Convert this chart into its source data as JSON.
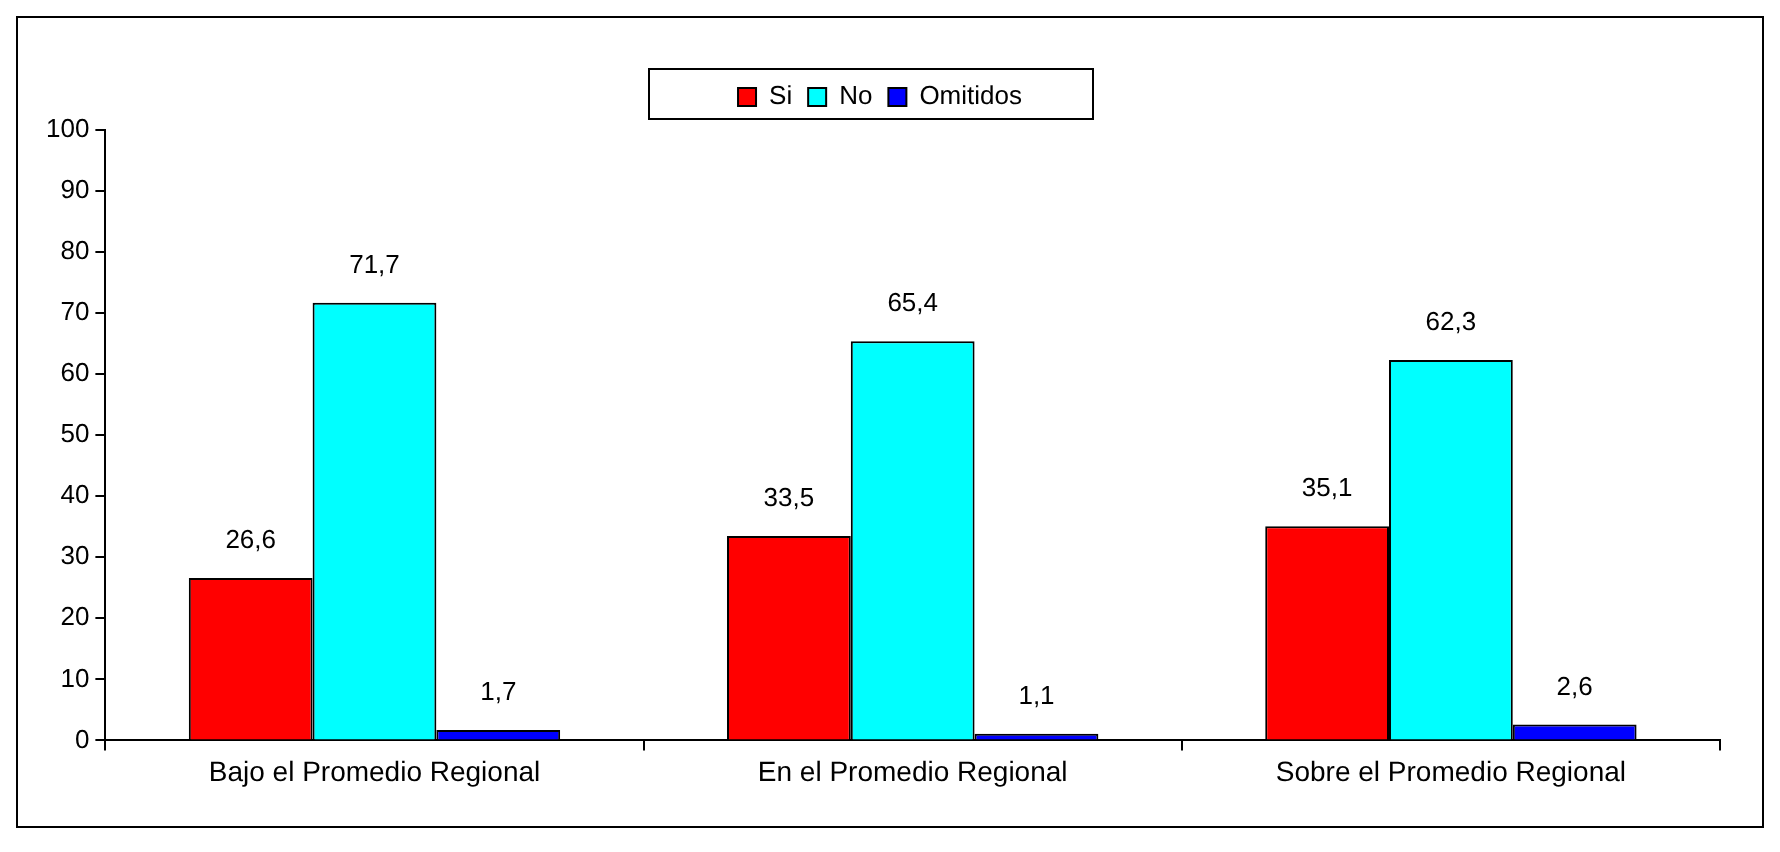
{
  "chart_data": {
    "type": "bar",
    "categories": [
      "Bajo el Promedio Regional",
      "En el Promedio Regional",
      "Sobre el Promedio Regional"
    ],
    "series": [
      {
        "name": "Si",
        "color": "#ff0000",
        "values": [
          26.6,
          33.5,
          35.1
        ],
        "value_labels": [
          "26,6",
          "33,5",
          "35,1"
        ]
      },
      {
        "name": "No",
        "color": "#00ffff",
        "values": [
          71.7,
          65.4,
          62.3
        ],
        "value_labels": [
          "71,7",
          "65,4",
          "62,3"
        ]
      },
      {
        "name": "Omitidos",
        "color": "#0000ff",
        "values": [
          1.7,
          1.1,
          2.6
        ],
        "value_labels": [
          "1,7",
          "1,1",
          "2,6"
        ]
      }
    ],
    "ylim": [
      0,
      100
    ],
    "yticks": [
      0,
      10,
      20,
      30,
      40,
      50,
      60,
      70,
      80,
      90,
      100
    ],
    "grid": false,
    "legend": "top"
  }
}
